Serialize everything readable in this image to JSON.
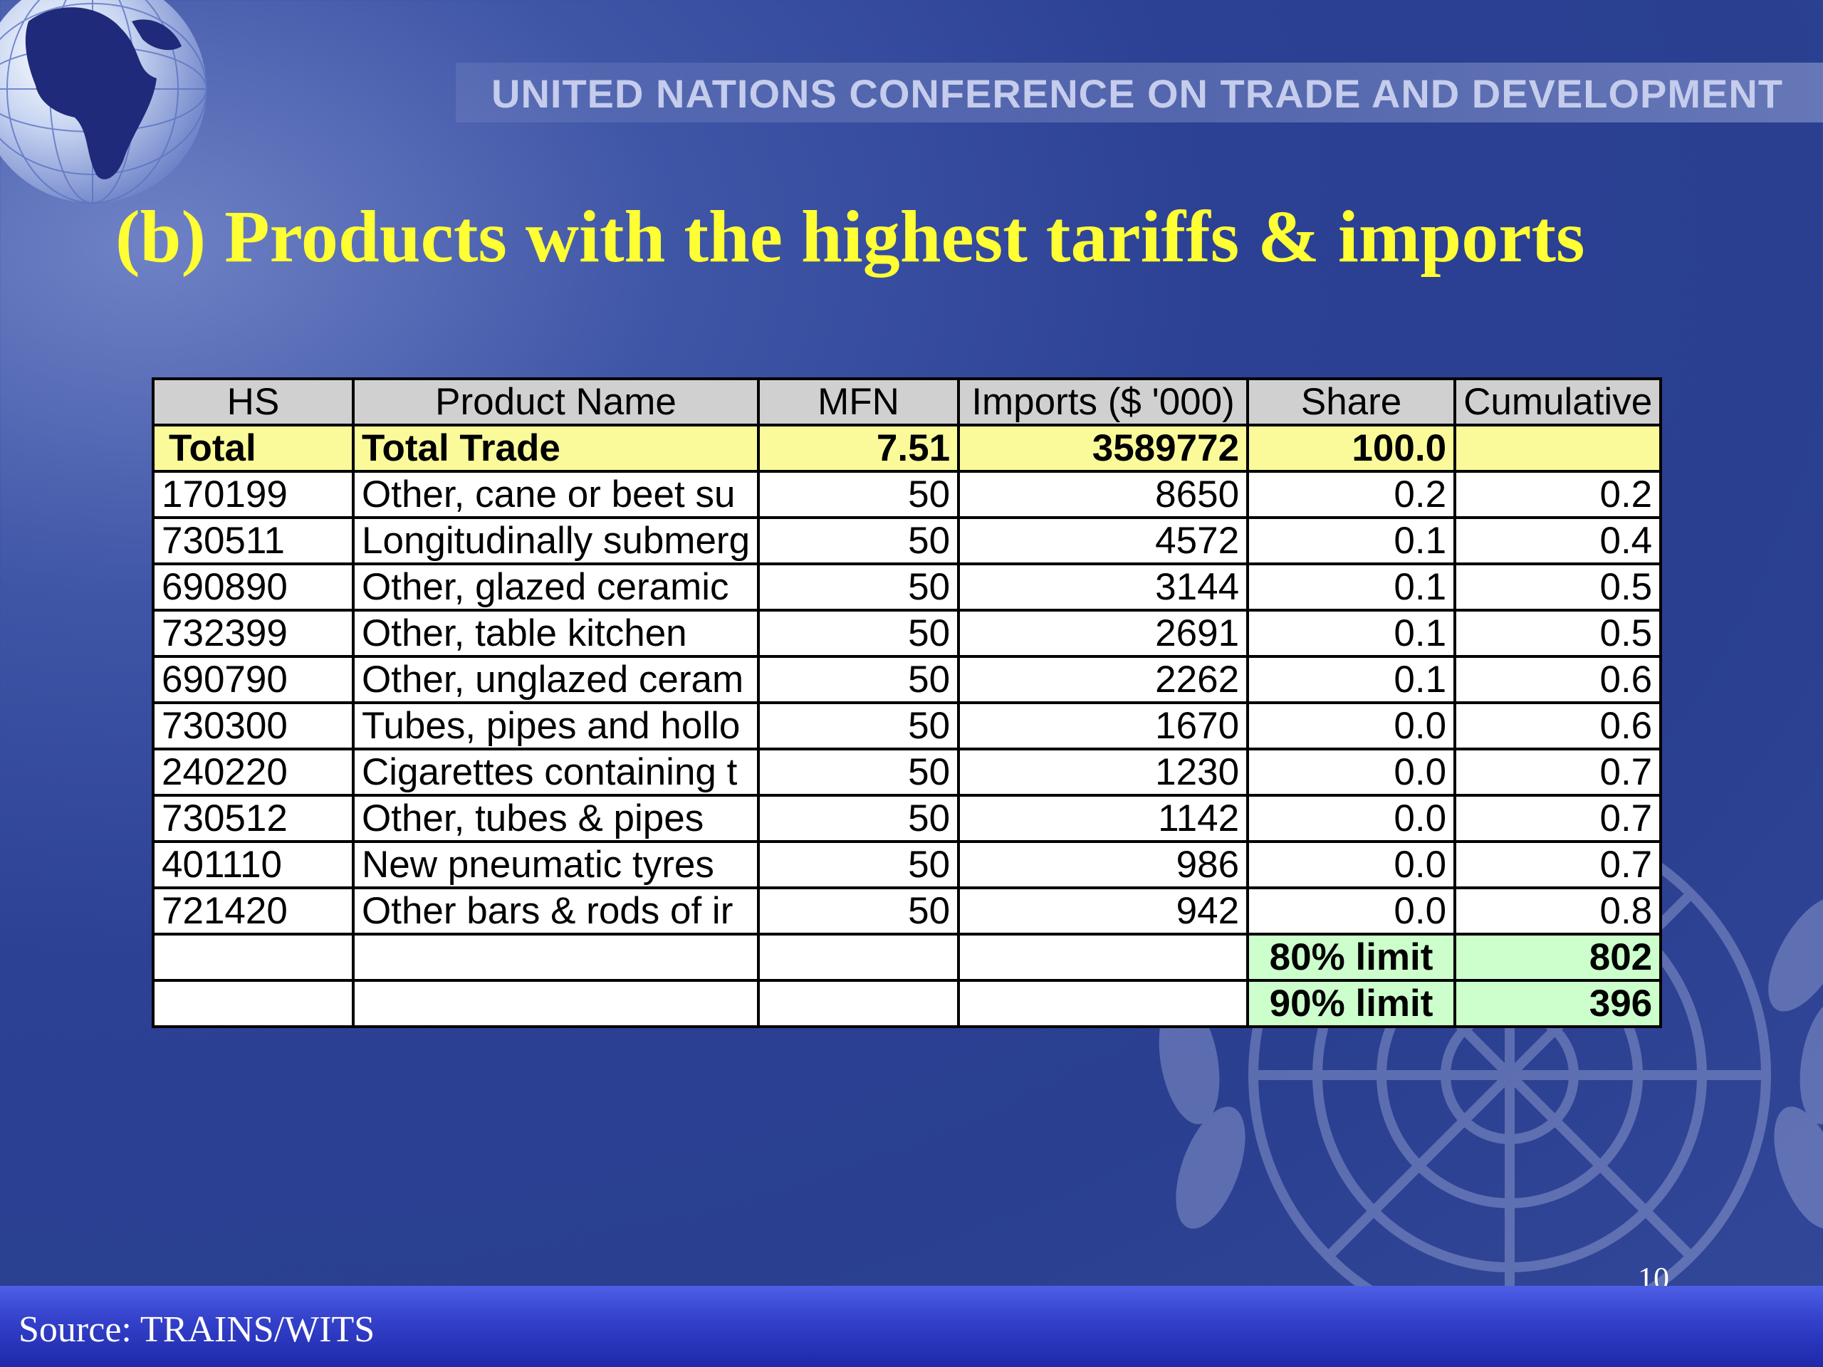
{
  "header": {
    "org_name": "UNITED NATIONS CONFERENCE ON TRADE AND DEVELOPMENT"
  },
  "slide": {
    "title": "(b) Products with the highest tariffs & imports",
    "page_number": "10",
    "source": "Source: TRAINS/WITS"
  },
  "table": {
    "headers": [
      "HS",
      "Product Name",
      "MFN",
      "Imports ($ '000)",
      "Share",
      "Cumulative"
    ],
    "total": {
      "hs": "Total",
      "name": "Total Trade",
      "mfn": "7.51",
      "imports": "3589772",
      "share": "100.0",
      "cumulative": ""
    },
    "rows": [
      {
        "hs": "170199",
        "name": "Other, cane or beet su",
        "mfn": "50",
        "imports": "8650",
        "share": "0.2",
        "cumulative": "0.2"
      },
      {
        "hs": "730511",
        "name": "Longitudinally submerg",
        "mfn": "50",
        "imports": "4572",
        "share": "0.1",
        "cumulative": "0.4"
      },
      {
        "hs": "690890",
        "name": "Other, glazed ceramic",
        "mfn": "50",
        "imports": "3144",
        "share": "0.1",
        "cumulative": "0.5"
      },
      {
        "hs": "732399",
        "name": "Other, table kitchen",
        "mfn": "50",
        "imports": "2691",
        "share": "0.1",
        "cumulative": "0.5"
      },
      {
        "hs": "690790",
        "name": "Other, unglazed ceram",
        "mfn": "50",
        "imports": "2262",
        "share": "0.1",
        "cumulative": "0.6"
      },
      {
        "hs": "730300",
        "name": "Tubes, pipes and hollo",
        "mfn": "50",
        "imports": "1670",
        "share": "0.0",
        "cumulative": "0.6"
      },
      {
        "hs": "240220",
        "name": "Cigarettes containing t",
        "mfn": "50",
        "imports": "1230",
        "share": "0.0",
        "cumulative": "0.7"
      },
      {
        "hs": "730512",
        "name": "Other, tubes & pipes",
        "mfn": "50",
        "imports": "1142",
        "share": "0.0",
        "cumulative": "0.7"
      },
      {
        "hs": "401110",
        "name": "New pneumatic tyres",
        "mfn": "50",
        "imports": "986",
        "share": "0.0",
        "cumulative": "0.7"
      },
      {
        "hs": "721420",
        "name": "Other bars & rods of ir",
        "mfn": "50",
        "imports": "942",
        "share": "0.0",
        "cumulative": "0.8"
      }
    ],
    "limits": [
      {
        "label": "80% limit",
        "value": "802"
      },
      {
        "label": "90% limit",
        "value": "396"
      }
    ]
  },
  "colors": {
    "title": "#ffff33",
    "total_row": "#fafa9a",
    "limit_cells": "#ccffcc",
    "header_row": "#d0d0d0",
    "footer_bar": "#3442cc"
  },
  "icons": {
    "globe": "globe-icon",
    "emblem": "un-emblem-icon"
  }
}
